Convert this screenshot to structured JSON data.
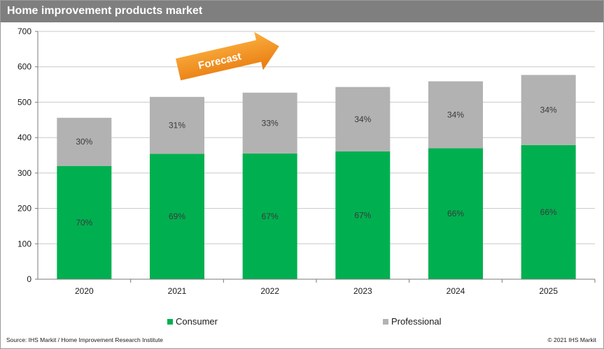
{
  "header": {
    "title": "Home improvement products market"
  },
  "annotation": {
    "forecast_label": "Forecast"
  },
  "legend": {
    "consumer": "Consumer",
    "professional": "Professional"
  },
  "footer": {
    "source": "Source: IHS Markit / Home Improvement Research Institute",
    "copyright": "© 2021 IHS Markit"
  },
  "colors": {
    "consumer": "#00b050",
    "professional": "#b2b2b2",
    "title_bar": "#7f7f7f",
    "forecast_arrow": "#f7931e"
  },
  "chart_data": {
    "type": "bar",
    "stacked": true,
    "title": "Home improvement products market",
    "categories": [
      "2020",
      "2021",
      "2022",
      "2023",
      "2024",
      "2025"
    ],
    "ylim": [
      0,
      700
    ],
    "yticks": [
      0,
      100,
      200,
      300,
      400,
      500,
      600,
      700
    ],
    "grid": true,
    "legend_position": "bottom",
    "series": [
      {
        "name": "Consumer",
        "values": [
          320,
          354,
          355,
          361,
          370,
          379
        ],
        "labels": [
          "70%",
          "69%",
          "67%",
          "67%",
          "66%",
          "66%"
        ]
      },
      {
        "name": "Professional",
        "values": [
          136,
          161,
          172,
          182,
          189,
          198
        ],
        "labels": [
          "30%",
          "31%",
          "33%",
          "34%",
          "34%",
          "34%"
        ]
      }
    ]
  }
}
